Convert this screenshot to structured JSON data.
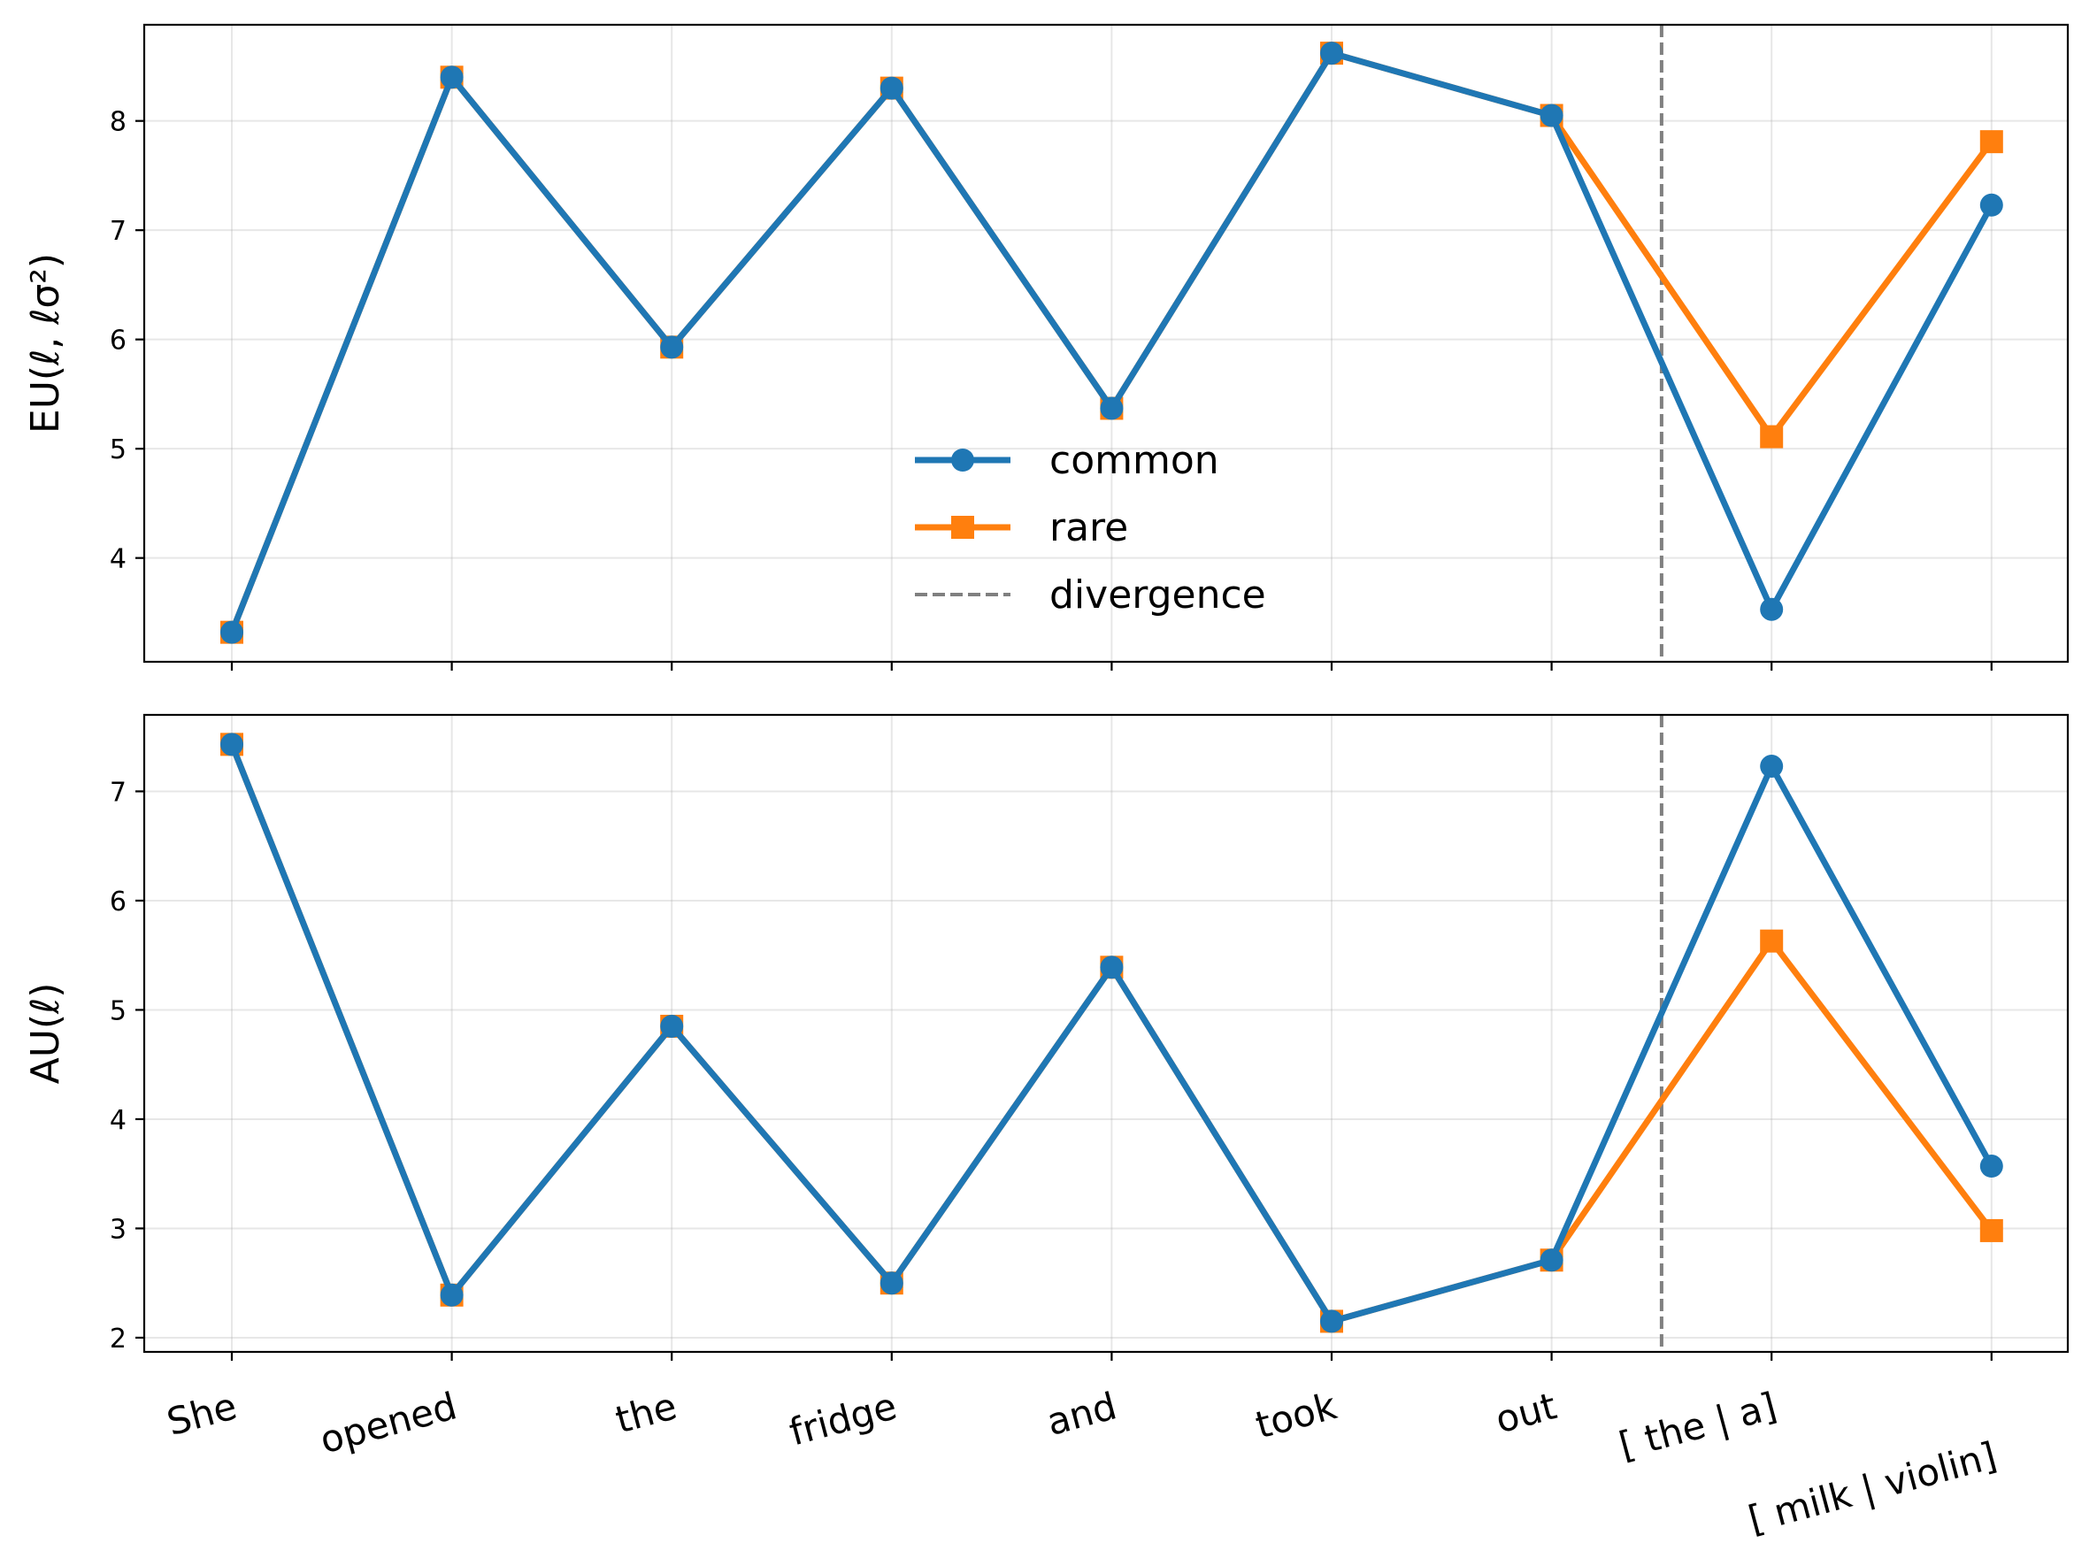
{
  "chart_data": {
    "type": "line",
    "categories": [
      "She",
      "opened",
      "the",
      "fridge",
      "and",
      "took",
      "out",
      "[ the |  a]",
      "[ milk |  violin]"
    ],
    "divergence_after_index": 6.5,
    "colors": {
      "common": "#1f77b4",
      "rare": "#ff7f0e",
      "divergence": "#808080"
    },
    "legend": {
      "placement": "center (top panel)",
      "entries": [
        {
          "label": "common",
          "marker": "circle",
          "color": "#1f77b4"
        },
        {
          "label": "rare",
          "marker": "square",
          "color": "#ff7f0e"
        },
        {
          "label": "divergence",
          "style": "dashed",
          "color": "#808080"
        }
      ]
    },
    "panels": [
      {
        "ylabel": "EU(ℓ, ℓσ²)",
        "ylim": [
          3.05,
          8.88
        ],
        "yticks": [
          4,
          5,
          6,
          7,
          8
        ],
        "grid": true,
        "series": [
          {
            "name": "common",
            "values": [
              3.32,
              8.4,
              5.93,
              8.3,
              5.37,
              8.62,
              8.05,
              3.53,
              7.23
            ]
          },
          {
            "name": "rare",
            "values": [
              3.32,
              8.4,
              5.93,
              8.3,
              5.37,
              8.62,
              8.05,
              5.11,
              7.81
            ]
          }
        ]
      },
      {
        "ylabel": "AU(ℓ)",
        "ylim": [
          1.87,
          7.7
        ],
        "yticks": [
          2,
          3,
          4,
          5,
          6,
          7
        ],
        "grid": true,
        "series": [
          {
            "name": "common",
            "values": [
              7.43,
              2.39,
              4.85,
              2.5,
              5.39,
              2.15,
              2.71,
              7.23,
              3.57
            ]
          },
          {
            "name": "rare",
            "values": [
              7.43,
              2.39,
              4.85,
              2.5,
              5.39,
              2.15,
              2.71,
              5.63,
              2.98
            ]
          }
        ]
      }
    ]
  }
}
